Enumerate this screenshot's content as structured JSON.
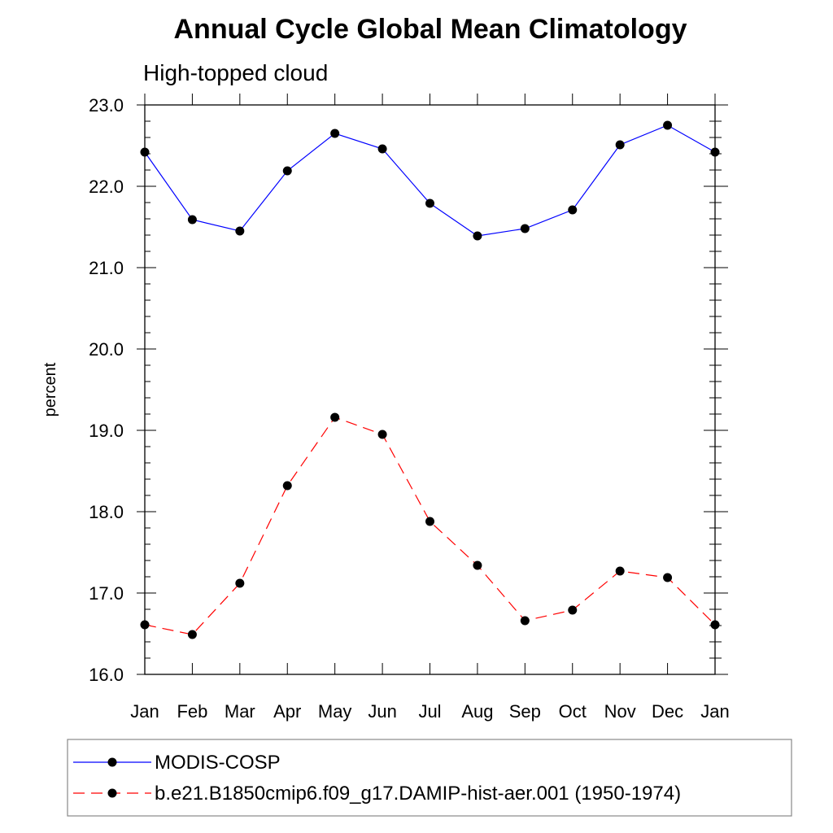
{
  "chart_data": {
    "type": "line",
    "title": "Annual Cycle Global Mean Climatology",
    "subtitle": "High-topped cloud",
    "ylabel": "percent",
    "xlabel": "",
    "categories": [
      "Jan",
      "Feb",
      "Mar",
      "Apr",
      "May",
      "Jun",
      "Jul",
      "Aug",
      "Sep",
      "Oct",
      "Nov",
      "Dec",
      "Jan"
    ],
    "ylim": [
      16.0,
      23.0
    ],
    "yticks": [
      "16.0",
      "17.0",
      "18.0",
      "19.0",
      "20.0",
      "21.0",
      "22.0",
      "23.0"
    ],
    "grid": false,
    "legend_position": "bottom",
    "series": [
      {
        "name": "MODIS-COSP",
        "color": "#0000ff",
        "dash": "solid",
        "values": [
          22.42,
          21.59,
          21.45,
          22.19,
          22.65,
          22.46,
          21.79,
          21.39,
          21.48,
          21.71,
          22.51,
          22.75,
          22.42
        ]
      },
      {
        "name": "b.e21.B1850cmip6.f09_g17.DAMIP-hist-aer.001 (1950-1974)",
        "color": "#ff0000",
        "dash": "dashed",
        "values": [
          16.61,
          16.49,
          17.12,
          18.32,
          19.16,
          18.95,
          17.88,
          17.34,
          16.66,
          16.79,
          17.27,
          17.19,
          16.61
        ]
      }
    ]
  }
}
